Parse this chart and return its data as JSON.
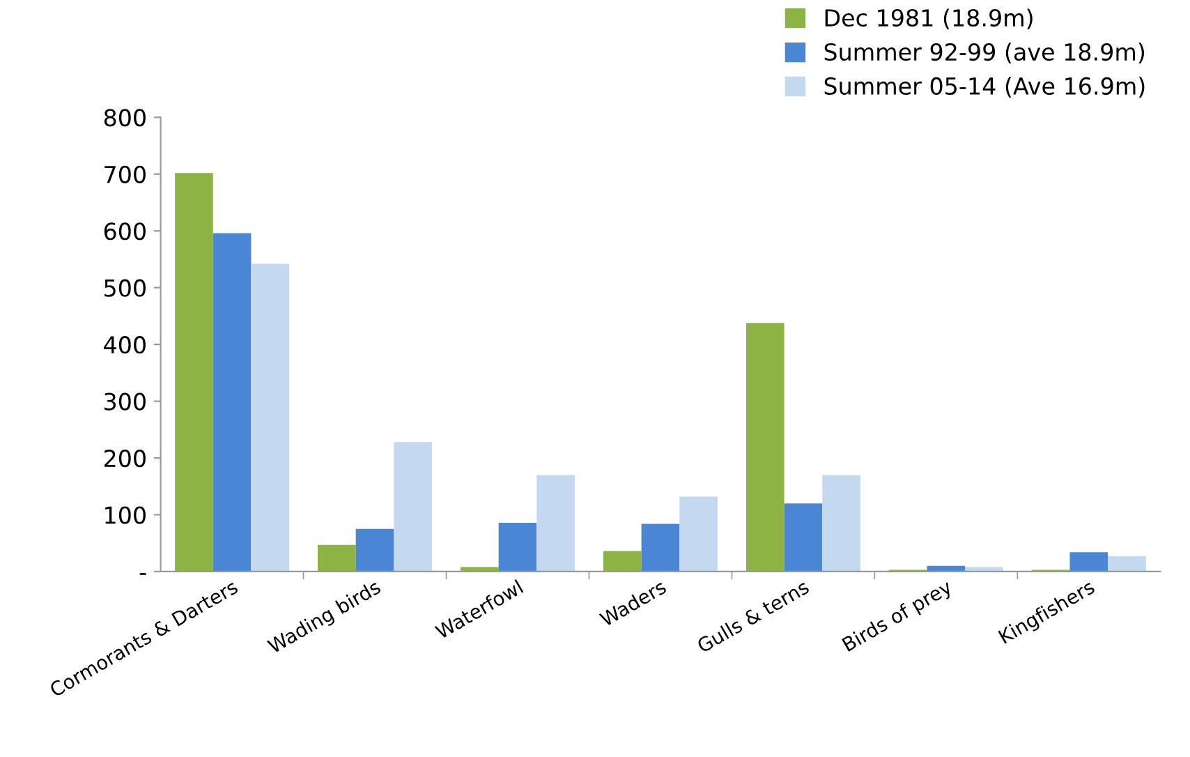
{
  "chart_data": {
    "type": "bar",
    "categories": [
      "Cormorants & Darters",
      "Wading birds",
      "Waterfowl",
      "Waders",
      "Gulls & terns",
      "Birds of prey",
      "Kingfishers"
    ],
    "series": [
      {
        "name": "Dec 1981 (18.9m)",
        "color": "#8db344",
        "values": [
          702,
          47,
          8,
          36,
          438,
          3,
          3
        ]
      },
      {
        "name": "Summer 92-99 (ave 18.9m)",
        "color": "#4a86d4",
        "values": [
          596,
          75,
          86,
          84,
          120,
          10,
          34
        ]
      },
      {
        "name": "Summer 05-14 (Ave 16.9m)",
        "color": "#c4d8ef",
        "values": [
          542,
          228,
          170,
          132,
          170,
          8,
          27
        ]
      }
    ],
    "ylim": [
      0,
      800
    ],
    "yticks": [
      {
        "value": 0,
        "label": "-"
      },
      100,
      200,
      300,
      400,
      500,
      600,
      700,
      800
    ],
    "legend": "top right"
  }
}
